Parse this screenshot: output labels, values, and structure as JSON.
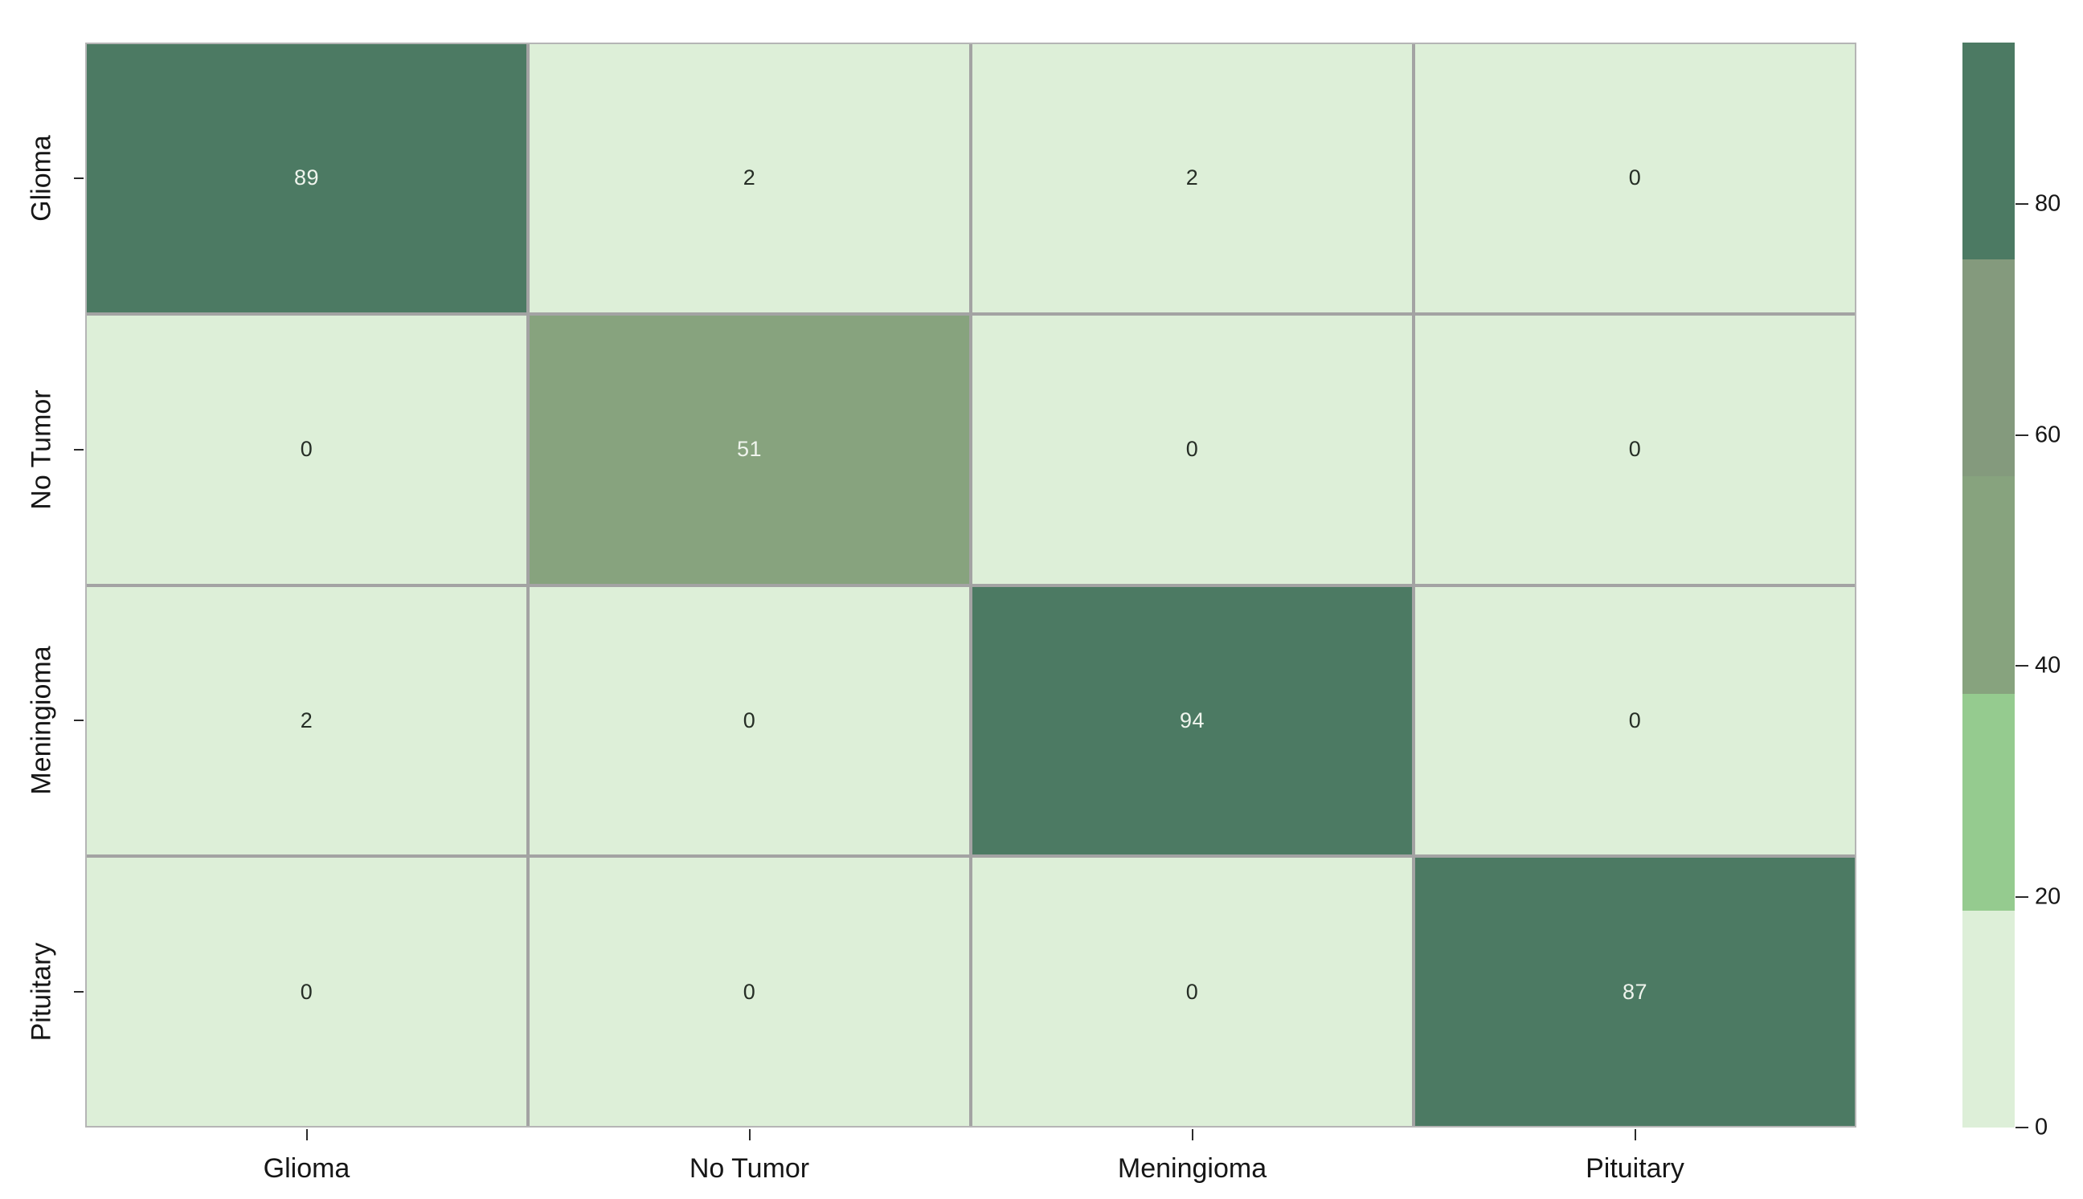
{
  "chart_data": {
    "type": "heatmap",
    "title": "",
    "x_tick_labels": [
      "Glioma",
      "No Tumor",
      "Meningioma",
      "Pituitary"
    ],
    "y_tick_labels": [
      "Glioma",
      "No Tumor",
      "Meningioma",
      "Pituitary"
    ],
    "matrix": [
      [
        89,
        2,
        2,
        0
      ],
      [
        0,
        51,
        0,
        0
      ],
      [
        2,
        0,
        94,
        0
      ],
      [
        0,
        0,
        0,
        87
      ]
    ],
    "vmin": 0,
    "vmax": 94,
    "grid_on": true,
    "legend_position": "right-colorbar",
    "colorbar_ticks": [
      0,
      20,
      40,
      60,
      80
    ],
    "palette": {
      "bands": [
        {
          "max": 18.8,
          "color": "#DDEFD8"
        },
        {
          "max": 37.6,
          "color": "#95CB8F"
        },
        {
          "max": 56.4,
          "color": "#87A37E"
        },
        {
          "max": 75.2,
          "color": "#849A7D"
        },
        {
          "max": 94,
          "color": "#4C7A63"
        }
      ],
      "white_text_above": 37.6,
      "annot_color_on_dark": "#EFF4ED",
      "annot_color_on_light": "#262E26",
      "gridline_color": "#A3A3A3",
      "frame_color": "#B5B5B5",
      "background": "#FFFFFF"
    }
  }
}
